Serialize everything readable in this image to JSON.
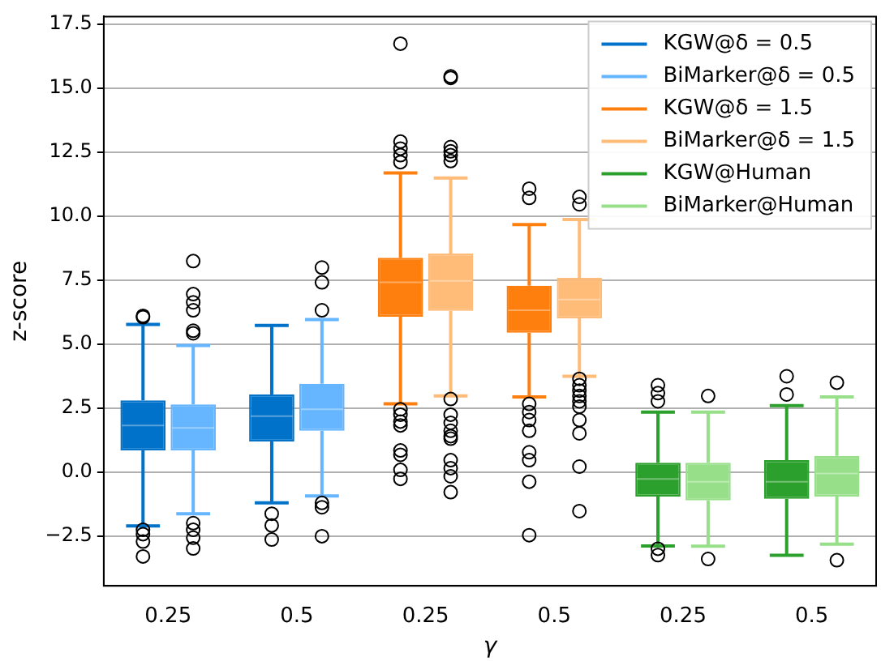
{
  "chart_data": {
    "type": "box",
    "xlabel": "γ",
    "ylabel": "z-score",
    "categories": [
      "0.25",
      "0.5",
      "0.25",
      "0.5",
      "0.25",
      "0.5"
    ],
    "ylim": [
      -4.45,
      17.8
    ],
    "yticks": [
      {
        "value": -2.5,
        "label": "−2.5"
      },
      {
        "value": 0,
        "label": "0.0"
      },
      {
        "value": 2.5,
        "label": "2.5"
      },
      {
        "value": 5,
        "label": "5.0"
      },
      {
        "value": 7.5,
        "label": "7.5"
      },
      {
        "value": 10,
        "label": "10.0"
      },
      {
        "value": 12.5,
        "label": "12.5"
      },
      {
        "value": 15,
        "label": "15.0"
      },
      {
        "value": 17.5,
        "label": "17.5"
      }
    ],
    "grid": "y",
    "legend": "top right",
    "series": [
      {
        "name": "KGW@δ = 0.5",
        "color": "#0072c9",
        "boxes": [
          {
            "low": -2.11,
            "q1": 0.84,
            "median": 1.82,
            "q3": 2.8,
            "high": 5.77,
            "outliers": [
              6.1,
              6.05,
              -2.26,
              -2.43,
              -2.72,
              -3.3
            ]
          },
          {
            "low": -1.21,
            "q1": 1.19,
            "median": 2.18,
            "q3": 3.03,
            "high": 5.73,
            "outliers": [
              -1.63,
              -2.09,
              -2.64
            ]
          },
          null,
          null,
          null,
          null
        ]
      },
      {
        "name": "BiMarker@δ = 0.5",
        "color": "#66b5ff",
        "boxes": [
          {
            "low": -1.63,
            "q1": 0.84,
            "median": 1.72,
            "q3": 2.64,
            "high": 4.94,
            "outliers": [
              8.24,
              6.95,
              6.63,
              6.32,
              5.52,
              5.42,
              -2.0,
              -2.26,
              -2.57,
              -2.99
            ]
          },
          {
            "low": -0.94,
            "q1": 1.61,
            "median": 2.45,
            "q3": 3.45,
            "high": 5.96,
            "outliers": [
              7.99,
              7.41,
              6.32,
              -1.21,
              -1.38,
              -2.51
            ]
          },
          null,
          null,
          null,
          null
        ]
      },
      {
        "name": "KGW@δ = 1.5",
        "color": "#ff7f0e",
        "boxes": [
          null,
          null,
          {
            "low": 2.66,
            "q1": 6.07,
            "median": 7.41,
            "q3": 8.37,
            "high": 11.69,
            "outliers": [
              16.74,
              12.91,
              12.64,
              12.38,
              12.11,
              2.45,
              2.24,
              1.97,
              1.82,
              0.84,
              0.67,
              0.08,
              -0.27
            ]
          },
          {
            "low": 2.93,
            "q1": 5.44,
            "median": 6.32,
            "q3": 7.28,
            "high": 9.67,
            "outliers": [
              11.07,
              10.71,
              2.66,
              2.34,
              2.03,
              1.61,
              0.77,
              0.46,
              -0.38,
              -2.47
            ]
          },
          null,
          null
        ]
      },
      {
        "name": "BiMarker@δ = 1.5",
        "color": "#ffbb78",
        "boxes": [
          null,
          null,
          {
            "low": 2.97,
            "q1": 6.3,
            "median": 7.47,
            "q3": 8.54,
            "high": 11.49,
            "outliers": [
              15.46,
              15.4,
              12.7,
              12.53,
              12.38,
              12.15,
              2.85,
              2.24,
              1.92,
              1.61,
              1.4,
              1.3,
              0.46,
              0.15,
              -0.17,
              -0.79
            ]
          },
          {
            "low": 3.74,
            "q1": 6.0,
            "median": 6.74,
            "q3": 7.59,
            "high": 9.87,
            "outliers": [
              10.75,
              10.46,
              3.64,
              3.39,
              3.18,
              2.97,
              2.76,
              2.55,
              2.03,
              1.51,
              0.21,
              -1.53
            ]
          },
          null,
          null
        ]
      },
      {
        "name": "KGW@Human",
        "color": "#2ca02c",
        "boxes": [
          null,
          null,
          null,
          null,
          {
            "low": -2.89,
            "q1": -0.96,
            "median": -0.27,
            "q3": 0.36,
            "high": 2.34,
            "outliers": [
              3.39,
              3.08,
              2.76,
              -3.0,
              -3.25
            ]
          },
          {
            "low": -3.26,
            "q1": -1.05,
            "median": -0.38,
            "q3": 0.46,
            "high": 2.59,
            "outliers": [
              3.74,
              3.03
            ]
          }
        ]
      },
      {
        "name": "BiMarker@Human",
        "color": "#98df8a",
        "boxes": [
          null,
          null,
          null,
          null,
          {
            "low": -2.9,
            "q1": -1.11,
            "median": -0.38,
            "q3": 0.36,
            "high": 2.34,
            "outliers": [
              2.97,
              -3.4
            ]
          },
          {
            "low": -2.82,
            "q1": -0.96,
            "median": -0.06,
            "q3": 0.63,
            "high": 2.93,
            "outliers": [
              3.49,
              -3.45
            ]
          }
        ]
      }
    ]
  }
}
